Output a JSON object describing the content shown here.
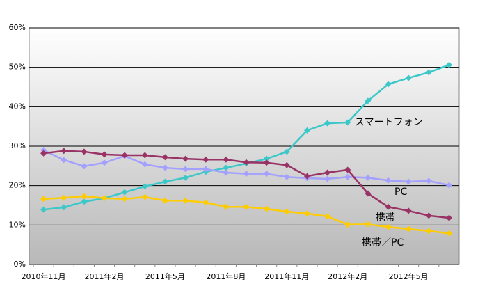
{
  "chart_data": {
    "type": "line",
    "categories": [
      "2010年11月",
      null,
      null,
      "2011年2月",
      null,
      null,
      "2011年5月",
      null,
      null,
      "2011年8月",
      null,
      null,
      "2011年11月",
      null,
      null,
      "2012年2月",
      null,
      null,
      "2012年5月",
      null,
      null
    ],
    "series": [
      {
        "name": "スマートフォン",
        "color": "#3cc8c8",
        "values": [
          13.9,
          14.5,
          15.9,
          16.8,
          18.3,
          19.8,
          21,
          22,
          23.5,
          24.5,
          25.6,
          26.8,
          28.6,
          34,
          35.8,
          36,
          41.5,
          45.7,
          47.3,
          48.7,
          50.6
        ]
      },
      {
        "name": "PC",
        "color": "#a4a0ff",
        "values": [
          29,
          26.5,
          24.9,
          25.8,
          27.5,
          25.4,
          24.5,
          24.2,
          24.2,
          23.3,
          23,
          23,
          22.2,
          21.9,
          21.7,
          22.2,
          22,
          21.3,
          21,
          21.2,
          20.1
        ]
      },
      {
        "name": "携帯",
        "color": "#993366",
        "values": [
          28.2,
          28.8,
          28.6,
          27.9,
          27.7,
          27.7,
          27.2,
          26.8,
          26.6,
          26.6,
          25.9,
          25.8,
          25.2,
          22.4,
          23.3,
          24,
          18,
          14.6,
          13.6,
          12.4,
          11.8
        ]
      },
      {
        "name": "携帯／PC",
        "color": "#ffcc00",
        "values": [
          16.6,
          16.9,
          17.3,
          16.8,
          16.6,
          17.1,
          16.2,
          16.2,
          15.7,
          14.6,
          14.6,
          14.1,
          13.4,
          12.9,
          12.2,
          10.1,
          10.2,
          9.5,
          9,
          8.5,
          7.9
        ]
      }
    ],
    "ylim": [
      0,
      60
    ],
    "yticks": [
      {
        "value": 0,
        "label": "0%"
      },
      {
        "value": 10,
        "label": "10%"
      },
      {
        "value": 20,
        "label": "20%"
      },
      {
        "value": 30,
        "label": "30%"
      },
      {
        "value": 40,
        "label": "40%"
      },
      {
        "value": 50,
        "label": "50%"
      },
      {
        "value": 60,
        "label": "60%"
      }
    ],
    "grid": true
  }
}
